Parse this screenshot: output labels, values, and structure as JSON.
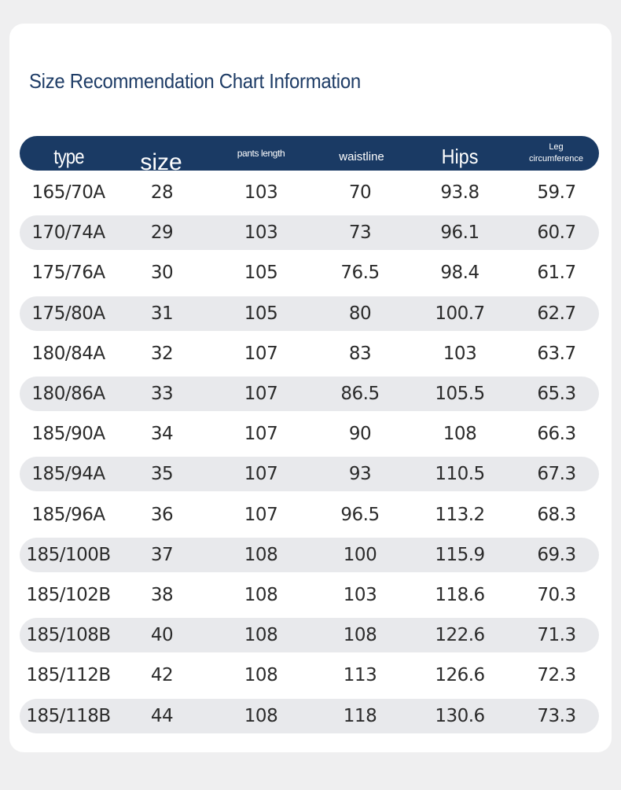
{
  "title": "Size Recommendation Chart Information",
  "headers": {
    "type": "type",
    "size": "size",
    "pants_length": "pants length",
    "waistline": "waistline",
    "hips": "Hips",
    "leg_line1": "Leg",
    "leg_line2": "circumference"
  },
  "rows": [
    {
      "type": "165/70A",
      "size": "28",
      "pants_length": "103",
      "waistline": "70",
      "hips": "93.8",
      "leg": "59.7"
    },
    {
      "type": "170/74A",
      "size": "29",
      "pants_length": "103",
      "waistline": "73",
      "hips": "96.1",
      "leg": "60.7"
    },
    {
      "type": "175/76A",
      "size": "30",
      "pants_length": "105",
      "waistline": "76.5",
      "hips": "98.4",
      "leg": "61.7"
    },
    {
      "type": "175/80A",
      "size": "31",
      "pants_length": "105",
      "waistline": "80",
      "hips": "100.7",
      "leg": "62.7"
    },
    {
      "type": "180/84A",
      "size": "32",
      "pants_length": "107",
      "waistline": "83",
      "hips": "103",
      "leg": "63.7"
    },
    {
      "type": "180/86A",
      "size": "33",
      "pants_length": "107",
      "waistline": "86.5",
      "hips": "105.5",
      "leg": "65.3"
    },
    {
      "type": "185/90A",
      "size": "34",
      "pants_length": "107",
      "waistline": "90",
      "hips": "108",
      "leg": "66.3"
    },
    {
      "type": "185/94A",
      "size": "35",
      "pants_length": "107",
      "waistline": "93",
      "hips": "110.5",
      "leg": "67.3"
    },
    {
      "type": "185/96A",
      "size": "36",
      "pants_length": "107",
      "waistline": "96.5",
      "hips": "113.2",
      "leg": "68.3"
    },
    {
      "type": "185/100B",
      "size": "37",
      "pants_length": "108",
      "waistline": "100",
      "hips": "115.9",
      "leg": "69.3"
    },
    {
      "type": "185/102B",
      "size": "38",
      "pants_length": "108",
      "waistline": "103",
      "hips": "118.6",
      "leg": "70.3"
    },
    {
      "type": "185/108B",
      "size": "40",
      "pants_length": "108",
      "waistline": "108",
      "hips": "122.6",
      "leg": "71.3"
    },
    {
      "type": "185/112B",
      "size": "42",
      "pants_length": "108",
      "waistline": "113",
      "hips": "126.6",
      "leg": "72.3"
    },
    {
      "type": "185/118B",
      "size": "44",
      "pants_length": "108",
      "waistline": "118",
      "hips": "130.6",
      "leg": "73.3"
    }
  ],
  "colors": {
    "header_bg": "#1a3a64",
    "title": "#1e3c66",
    "row_shade": "#e8e9ec",
    "page_bg": "#efeff0"
  }
}
